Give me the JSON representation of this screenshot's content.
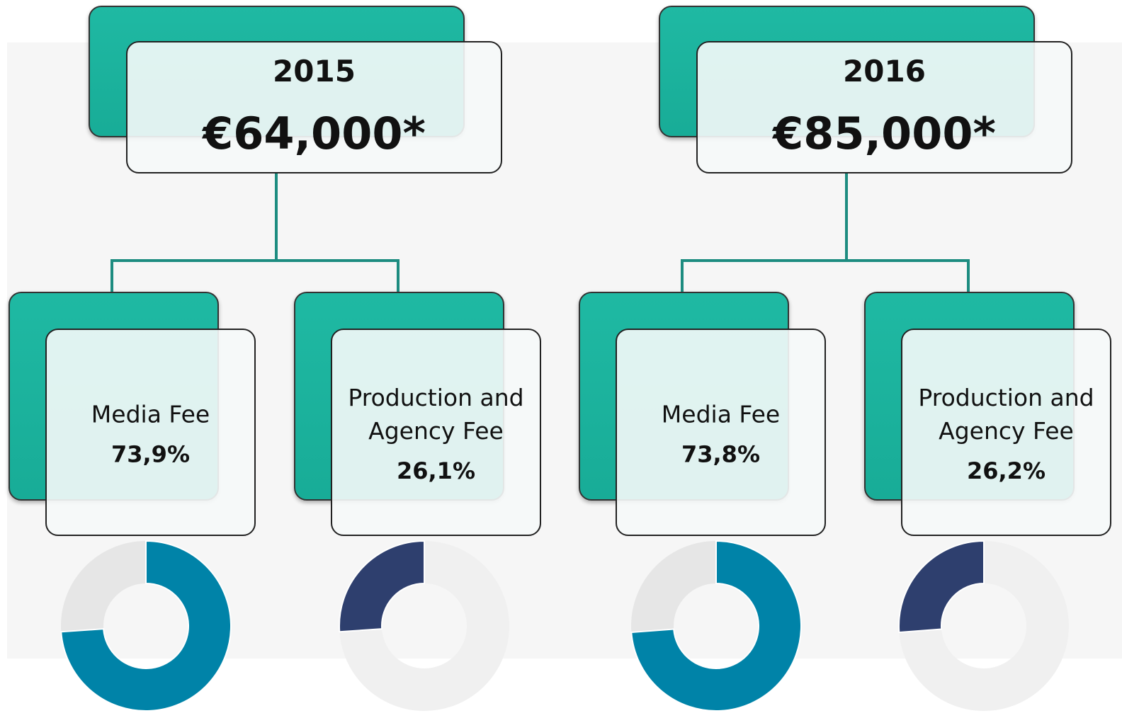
{
  "groups": [
    {
      "year": "2015",
      "total": "€64,000*",
      "items": [
        {
          "label": "Media Fee",
          "value": 73.9,
          "value_label": "73,9%"
        },
        {
          "label": "Production and Agency Fee",
          "value": 26.1,
          "value_label": "26,1%"
        }
      ]
    },
    {
      "year": "2016",
      "total": "€85,000*",
      "items": [
        {
          "label": "Media Fee",
          "value": 73.8,
          "value_label": "73,8%"
        },
        {
          "label": "Production and Agency Fee",
          "value": 26.2,
          "value_label": "26,2%"
        }
      ]
    }
  ]
}
